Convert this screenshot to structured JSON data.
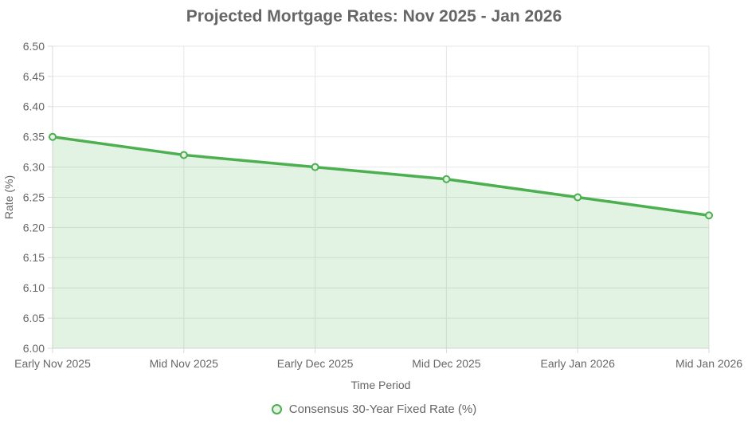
{
  "chart_data": {
    "type": "area",
    "title": "Projected Mortgage Rates: Nov 2025 - Jan 2026",
    "categories": [
      "Early Nov 2025",
      "Mid Nov 2025",
      "Early Dec 2025",
      "Mid Dec 2025",
      "Early Jan 2026",
      "Mid Jan 2026"
    ],
    "series": [
      {
        "name": "Consensus 30-Year Fixed Rate (%)",
        "values": [
          6.35,
          6.32,
          6.3,
          6.28,
          6.25,
          6.22
        ]
      }
    ],
    "xlabel": "Time Period",
    "ylabel": "Rate (%)",
    "ylim": [
      6.0,
      6.5
    ],
    "ytick_step": 0.05,
    "ytick_format_decimals": 2,
    "grid": true,
    "legend_position": "bottom",
    "colors": {
      "line": "#4caf50",
      "area_fill": "rgba(76, 175, 80, 0.16)",
      "marker_fill": "#e4f2e3",
      "grid": "#e6e6e6",
      "axis_border": "#d9d9d9",
      "title_text": "#666666",
      "tick_text": "#666666"
    }
  }
}
